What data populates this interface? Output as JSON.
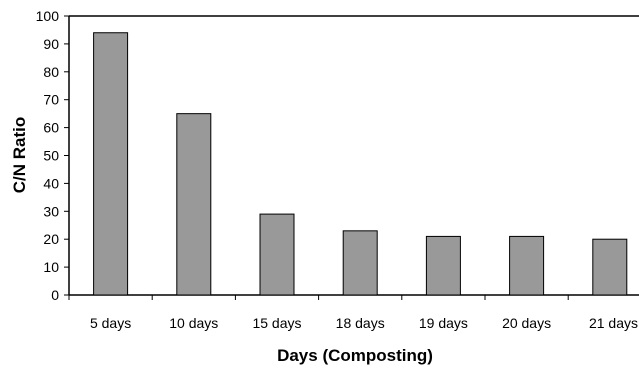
{
  "chart_data": {
    "type": "bar",
    "title": "",
    "xlabel": "Days (Composting)",
    "ylabel": "C/N Ratio",
    "categories": [
      "5 days",
      "10 days",
      "15 days",
      "18 days",
      "19 days",
      "20 days",
      "21 days"
    ],
    "values": [
      94,
      65,
      29,
      23,
      21,
      21,
      20
    ],
    "ylim": [
      0,
      100
    ],
    "ytick_step": 10,
    "yticks": [
      "0",
      "10",
      "20",
      "30",
      "40",
      "50",
      "60",
      "70",
      "80",
      "90",
      "100"
    ],
    "grid": false,
    "legend": "none",
    "colors": {
      "bar_fill": "#999999",
      "bar_stroke": "#000000",
      "axis": "#000000",
      "background": "#ffffff"
    }
  }
}
